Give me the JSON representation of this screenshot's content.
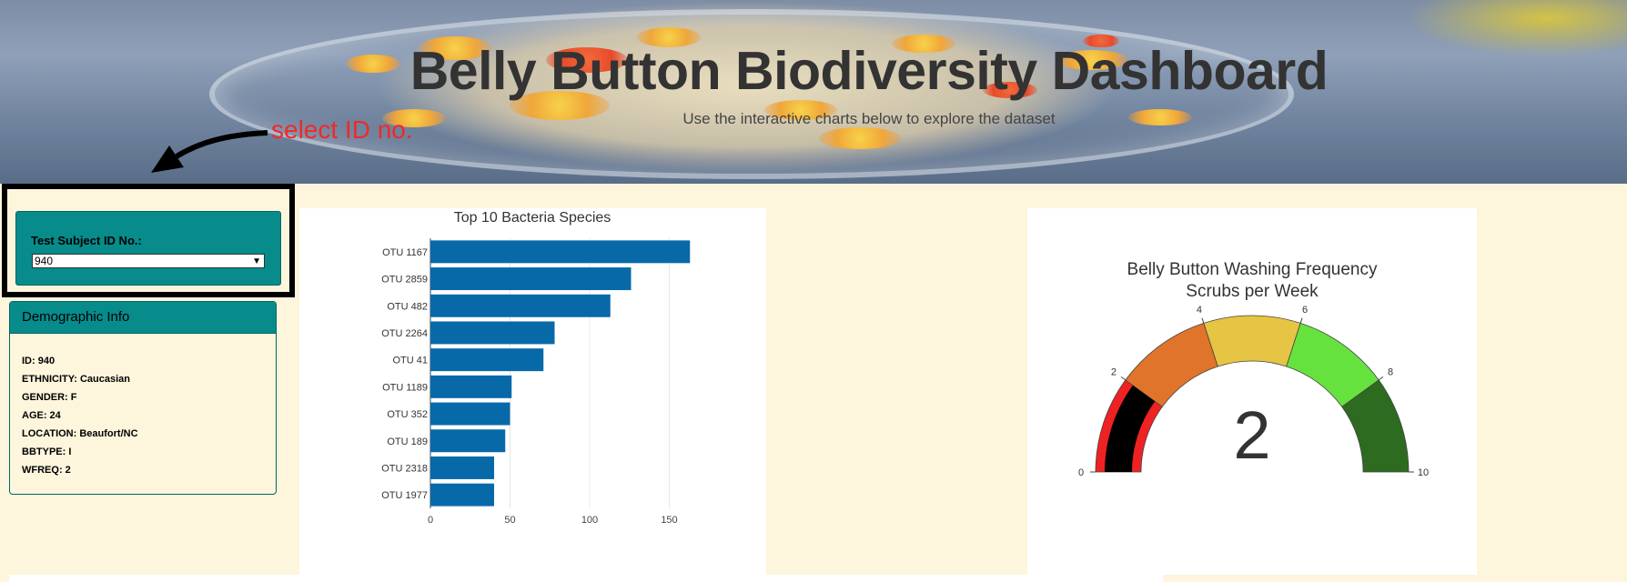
{
  "header": {
    "title": "Belly Button Biodiversity Dashboard",
    "subtitle": "Use the interactive charts below to explore the dataset",
    "annotation": "select ID no."
  },
  "selector": {
    "label": "Test Subject ID No.:",
    "selected": "940"
  },
  "demographics": {
    "heading": "Demographic Info",
    "rows": [
      "ID: 940",
      "ETHNICITY: Caucasian",
      "GENDER: F",
      "AGE: 24",
      "LOCATION: Beaufort/NC",
      "BBTYPE: I",
      "WFREQ: 2"
    ]
  },
  "colors": {
    "bar": "#0869a9",
    "panel": "#078b8b",
    "background": "#fdf6dc",
    "annotation": "#ee2a2a"
  },
  "chart_data": [
    {
      "type": "bar",
      "orientation": "horizontal",
      "title": "Top 10 Bacteria Species",
      "categories": [
        "OTU 1167",
        "OTU 2859",
        "OTU 482",
        "OTU 2264",
        "OTU 41",
        "OTU 1189",
        "OTU 352",
        "OTU 189",
        "OTU 2318",
        "OTU 1977"
      ],
      "values": [
        163,
        126,
        113,
        78,
        71,
        51,
        50,
        47,
        40,
        40
      ],
      "xticks": [
        0,
        50,
        100,
        150
      ],
      "xlim": [
        0,
        172
      ],
      "grid": true
    },
    {
      "type": "gauge",
      "title": "Belly Button Washing Frequency",
      "subtitle": "Scrubs per Week",
      "value": 2,
      "range": [
        0,
        10
      ],
      "ticks": [
        0,
        2,
        4,
        6,
        8,
        10
      ],
      "steps": [
        {
          "range": [
            0,
            2
          ],
          "color": "#ee2222"
        },
        {
          "range": [
            2,
            4
          ],
          "color": "#e0742a"
        },
        {
          "range": [
            4,
            6
          ],
          "color": "#e6c444"
        },
        {
          "range": [
            6,
            8
          ],
          "color": "#66e23e"
        },
        {
          "range": [
            8,
            10
          ],
          "color": "#2d6b20"
        }
      ],
      "bar_color": "#000000"
    }
  ]
}
